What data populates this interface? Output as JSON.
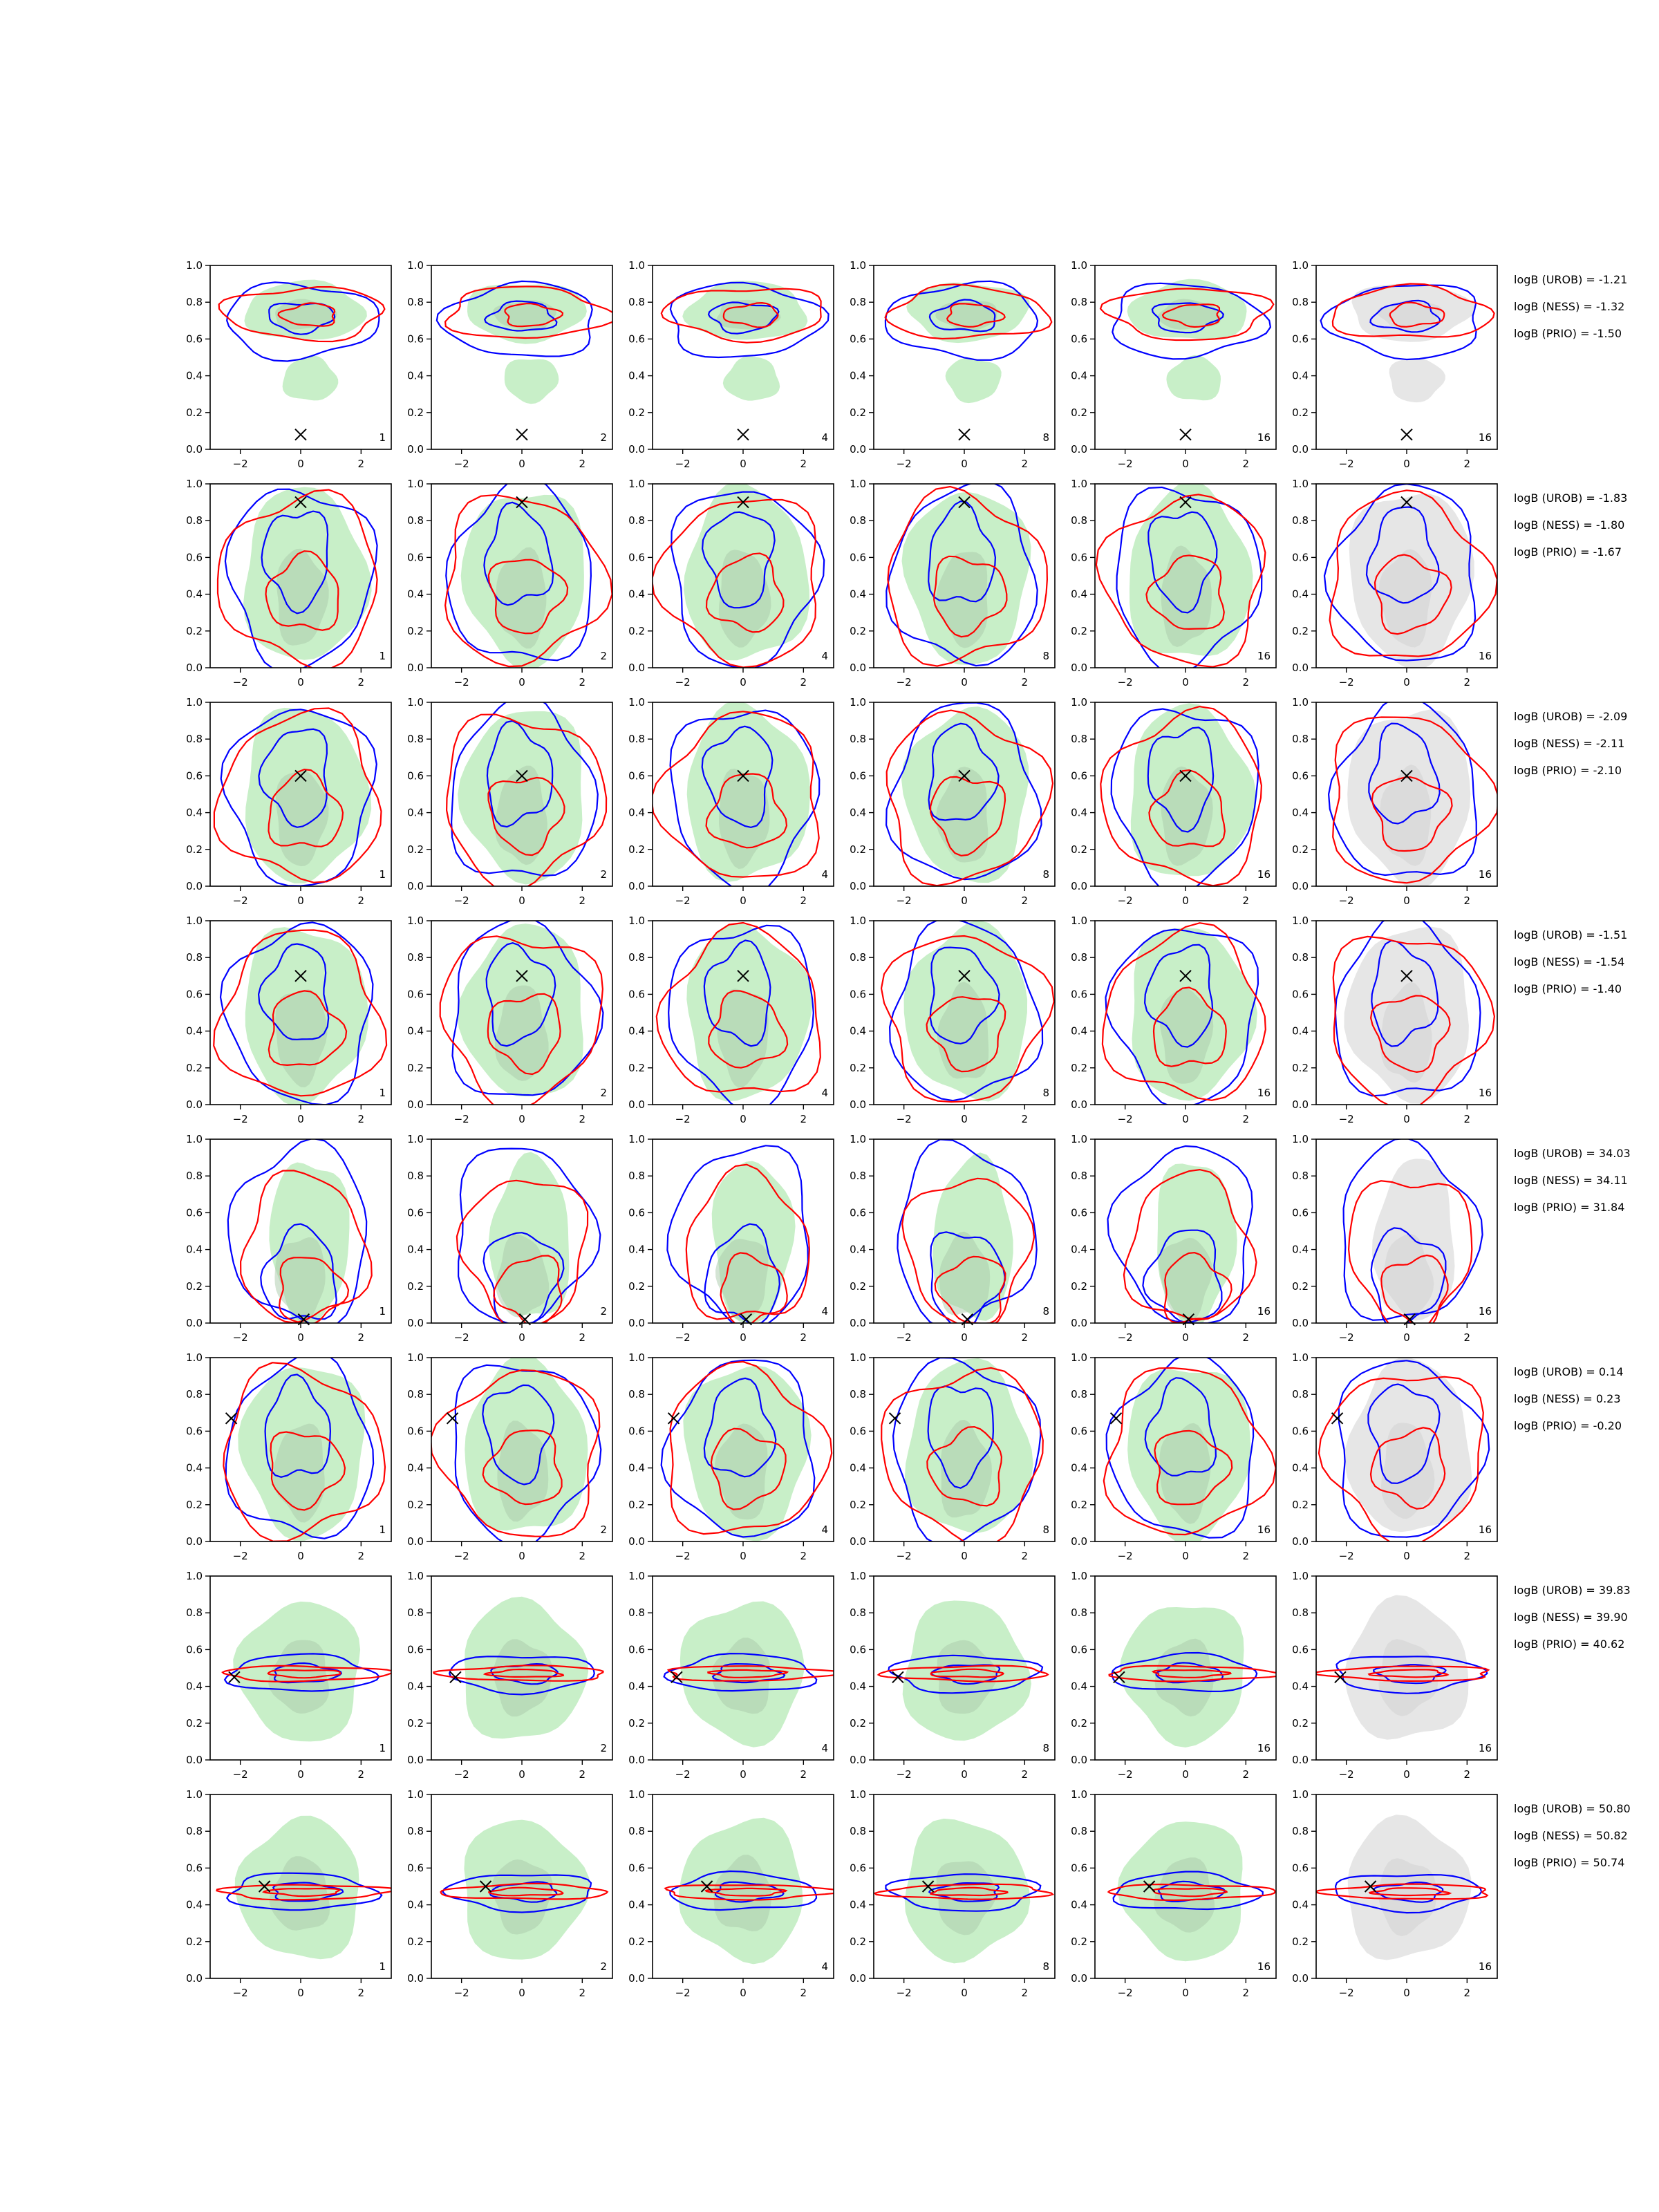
{
  "figure": {
    "columns": 6,
    "rows": 8
  },
  "chart_data": {
    "type": "scatter",
    "description_kind": "grid of 2D contour density panels",
    "xlim": [
      -3,
      3
    ],
    "ylim": [
      0,
      1
    ],
    "x_ticks": [
      "−2",
      "0",
      "2"
    ],
    "y_ticks": [
      "0.0",
      "0.2",
      "0.4",
      "0.6",
      "0.8",
      "1.0"
    ],
    "column_labels": [
      "1",
      "2",
      "4",
      "8",
      "16",
      "16"
    ],
    "colors": {
      "fill_green": "#c8efc8",
      "fill_green_dark": "#a9c9a9",
      "fill_grey": "#e6e6e6",
      "fill_grey_dark": "#cfcfcf",
      "blue": "#0000ff",
      "red": "#ff0000",
      "marker": "#000000"
    },
    "rows": [
      {
        "marker": {
          "x": 0.0,
          "y": 0.08
        },
        "shape": "top",
        "logB": {
          "UROB": "logB (UROB) = -1.21",
          "NESS": "logB (NESS) = -1.32",
          "PRIO": "logB (PRIO) = -1.50"
        }
      },
      {
        "marker": {
          "x": 0.0,
          "y": 0.9
        },
        "shape": "column",
        "logB": {
          "UROB": "logB (UROB) = -1.83",
          "NESS": "logB (NESS) = -1.80",
          "PRIO": "logB (PRIO) = -1.67"
        }
      },
      {
        "marker": {
          "x": 0.0,
          "y": 0.6
        },
        "shape": "column",
        "logB": {
          "UROB": "logB (UROB) = -2.09",
          "NESS": "logB (NESS) = -2.11",
          "PRIO": "logB (PRIO) = -2.10"
        }
      },
      {
        "marker": {
          "x": 0.0,
          "y": 0.7
        },
        "shape": "column",
        "logB": {
          "UROB": "logB (UROB) = -1.51",
          "NESS": "logB (NESS) = -1.54",
          "PRIO": "logB (PRIO) = -1.40"
        }
      },
      {
        "marker": {
          "x": 0.1,
          "y": 0.02
        },
        "shape": "bottom",
        "logB": {
          "UROB": "logB (UROB) = 34.03",
          "NESS": "logB (NESS) = 34.11",
          "PRIO": "logB (PRIO) = 31.84"
        }
      },
      {
        "marker": {
          "x": -2.3,
          "y": 0.67
        },
        "shape": "column",
        "logB": {
          "UROB": "logB (UROB) = 0.14",
          "NESS": "logB (NESS) = 0.23",
          "PRIO": "logB (PRIO) = -0.20"
        }
      },
      {
        "marker": {
          "x": -2.2,
          "y": 0.45
        },
        "shape": "band",
        "logB": {
          "UROB": "logB (UROB) = 39.83",
          "NESS": "logB (NESS) = 39.90",
          "PRIO": "logB (PRIO) = 40.62"
        }
      },
      {
        "marker": {
          "x": -1.2,
          "y": 0.5
        },
        "shape": "band",
        "logB": {
          "UROB": "logB (UROB) = 50.80",
          "NESS": "logB (NESS) = 50.82",
          "PRIO": "logB (PRIO) = 50.74"
        }
      }
    ]
  }
}
